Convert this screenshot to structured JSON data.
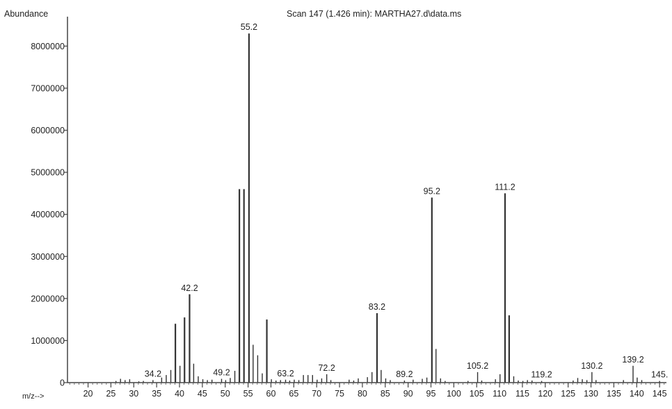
{
  "chart_data": {
    "type": "bar",
    "title": "Scan 147 (1.426 min): MARTHA27.d\\data.ms",
    "ylabel": "Abundance",
    "xlabel": "m/z-->",
    "xlim": [
      15.5,
      146.5
    ],
    "ylim": [
      0,
      8700000
    ],
    "x_ticks": [
      20,
      25,
      30,
      35,
      40,
      45,
      50,
      55,
      60,
      65,
      70,
      75,
      80,
      85,
      90,
      95,
      100,
      105,
      110,
      115,
      120,
      125,
      130,
      135,
      140,
      145
    ],
    "y_ticks": [
      {
        "value": 0,
        "label": "0"
      },
      {
        "value": 1000000,
        "label": "1000000"
      },
      {
        "value": 2000000,
        "label": "2000000"
      },
      {
        "value": 3000000,
        "label": "3000000"
      },
      {
        "value": 4000000,
        "label": "4000000"
      },
      {
        "value": 5000000,
        "label": "5000000"
      },
      {
        "value": 6000000,
        "label": "6000000"
      },
      {
        "value": 7000000,
        "label": "7000000"
      },
      {
        "value": 8000000,
        "label": "8000000"
      }
    ],
    "peaks": [
      {
        "x": 26.1,
        "y": 40000
      },
      {
        "x": 27.1,
        "y": 90000
      },
      {
        "x": 28.1,
        "y": 60000
      },
      {
        "x": 29.1,
        "y": 80000
      },
      {
        "x": 31.1,
        "y": 30000
      },
      {
        "x": 32.1,
        "y": 40000
      },
      {
        "x": 34.2,
        "y": 60000,
        "label": "34.2"
      },
      {
        "x": 36.1,
        "y": 120000
      },
      {
        "x": 37.1,
        "y": 180000
      },
      {
        "x": 38.1,
        "y": 300000
      },
      {
        "x": 39.1,
        "y": 1400000
      },
      {
        "x": 40.1,
        "y": 400000
      },
      {
        "x": 41.1,
        "y": 1550000
      },
      {
        "x": 42.2,
        "y": 2100000,
        "label": "42.2"
      },
      {
        "x": 43.1,
        "y": 450000
      },
      {
        "x": 44.1,
        "y": 150000
      },
      {
        "x": 45.1,
        "y": 80000
      },
      {
        "x": 46.1,
        "y": 60000
      },
      {
        "x": 47.1,
        "y": 70000
      },
      {
        "x": 49.2,
        "y": 90000,
        "label": "49.2"
      },
      {
        "x": 50.1,
        "y": 60000
      },
      {
        "x": 51.1,
        "y": 110000
      },
      {
        "x": 52.1,
        "y": 280000
      },
      {
        "x": 53.1,
        "y": 4600000
      },
      {
        "x": 54.1,
        "y": 4600000
      },
      {
        "x": 55.2,
        "y": 8300000,
        "label": "55.2"
      },
      {
        "x": 56.1,
        "y": 900000
      },
      {
        "x": 57.1,
        "y": 650000
      },
      {
        "x": 58.1,
        "y": 220000
      },
      {
        "x": 59.1,
        "y": 1500000
      },
      {
        "x": 60.1,
        "y": 80000
      },
      {
        "x": 61.1,
        "y": 50000
      },
      {
        "x": 62.1,
        "y": 60000
      },
      {
        "x": 63.2,
        "y": 70000,
        "label": "63.2"
      },
      {
        "x": 64.1,
        "y": 50000
      },
      {
        "x": 65.1,
        "y": 70000
      },
      {
        "x": 66.1,
        "y": 60000
      },
      {
        "x": 67.1,
        "y": 180000
      },
      {
        "x": 68.1,
        "y": 180000
      },
      {
        "x": 69.1,
        "y": 180000
      },
      {
        "x": 70.1,
        "y": 70000
      },
      {
        "x": 71.1,
        "y": 100000
      },
      {
        "x": 72.2,
        "y": 200000,
        "label": "72.2"
      },
      {
        "x": 73.1,
        "y": 60000
      },
      {
        "x": 77.1,
        "y": 70000
      },
      {
        "x": 78.1,
        "y": 50000
      },
      {
        "x": 79.1,
        "y": 100000
      },
      {
        "x": 81.1,
        "y": 130000
      },
      {
        "x": 82.1,
        "y": 250000
      },
      {
        "x": 83.2,
        "y": 1650000,
        "label": "83.2"
      },
      {
        "x": 84.1,
        "y": 300000
      },
      {
        "x": 85.1,
        "y": 100000
      },
      {
        "x": 86.1,
        "y": 60000
      },
      {
        "x": 89.2,
        "y": 50000,
        "label": "89.2"
      },
      {
        "x": 91.1,
        "y": 70000
      },
      {
        "x": 93.1,
        "y": 90000
      },
      {
        "x": 94.1,
        "y": 120000
      },
      {
        "x": 95.2,
        "y": 4400000,
        "label": "95.2"
      },
      {
        "x": 96.1,
        "y": 800000
      },
      {
        "x": 97.1,
        "y": 100000
      },
      {
        "x": 98.1,
        "y": 40000
      },
      {
        "x": 103.1,
        "y": 40000
      },
      {
        "x": 105.2,
        "y": 250000,
        "label": "105.2"
      },
      {
        "x": 106.1,
        "y": 50000
      },
      {
        "x": 109.1,
        "y": 80000
      },
      {
        "x": 110.1,
        "y": 200000
      },
      {
        "x": 111.2,
        "y": 4500000,
        "label": "111.2"
      },
      {
        "x": 112.1,
        "y": 1600000
      },
      {
        "x": 113.1,
        "y": 150000
      },
      {
        "x": 114.1,
        "y": 50000
      },
      {
        "x": 115.1,
        "y": 40000
      },
      {
        "x": 116.1,
        "y": 60000
      },
      {
        "x": 117.1,
        "y": 50000
      },
      {
        "x": 119.2,
        "y": 40000,
        "label": "119.2"
      },
      {
        "x": 126.1,
        "y": 50000
      },
      {
        "x": 127.1,
        "y": 110000
      },
      {
        "x": 128.1,
        "y": 80000
      },
      {
        "x": 129.1,
        "y": 60000
      },
      {
        "x": 130.2,
        "y": 250000,
        "label": "130.2"
      },
      {
        "x": 131.1,
        "y": 60000
      },
      {
        "x": 137.1,
        "y": 60000
      },
      {
        "x": 139.2,
        "y": 400000,
        "label": "139.2"
      },
      {
        "x": 140.1,
        "y": 120000
      },
      {
        "x": 141.1,
        "y": 60000
      },
      {
        "x": 145,
        "y": 40000,
        "label": "145."
      }
    ]
  }
}
